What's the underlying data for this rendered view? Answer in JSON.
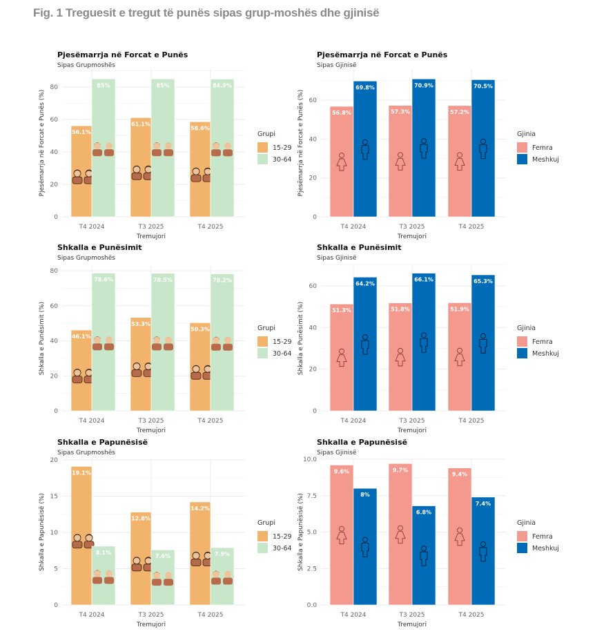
{
  "figure_title": "Fig. 1 Treguesit e tregut të punës sipas grup-moshës dhe gjinisë",
  "colors": {
    "group_15_29": "#F2B46D",
    "group_30_64": "#C8E6C9",
    "femra": "#F4998E",
    "meshkuj": "#006BB6",
    "grid": "#EBEBEB"
  },
  "chart_data": [
    {
      "id": "lfp-age",
      "type": "bar",
      "title": "Pjesëmarrja në Forcat e Punës",
      "subtitle": "Sipas Grupmoshës",
      "xlabel": "Tremujori",
      "ylabel": "Pjesëmarrja në Forcat e Punës (%)",
      "categories": [
        "T4 2024",
        "T3 2025",
        "T4 2025"
      ],
      "ylim": [
        0,
        85
      ],
      "yticks": [
        0,
        20,
        40,
        60,
        80
      ],
      "legend_title": "Grupi",
      "legend_position": "right",
      "icon_type": "people",
      "series": [
        {
          "name": "15-29",
          "color_key": "group_15_29",
          "values": [
            56.1,
            61.1,
            58.6
          ],
          "labels": [
            "56.1%",
            "61.1%",
            "58.6%"
          ]
        },
        {
          "name": "30-64",
          "color_key": "group_30_64",
          "values": [
            85,
            85,
            84.9
          ],
          "labels": [
            "85%",
            "85%",
            "84.9%"
          ]
        }
      ]
    },
    {
      "id": "lfp-gender",
      "type": "bar",
      "title": "Pjesëmarrja në Forcat e Punës",
      "subtitle": "Sipas Gjinisë",
      "xlabel": "Tremujori",
      "ylabel": "Pjesëmarrja në Forcat e Punës (%)",
      "categories": [
        "T4 2024",
        "T3 2025",
        "T4 2025"
      ],
      "ylim": [
        0,
        71
      ],
      "yticks": [
        0,
        20,
        40,
        60
      ],
      "legend_title": "Gjinia",
      "legend_position": "right",
      "icon_type": "gender",
      "series": [
        {
          "name": "Femra",
          "color_key": "femra",
          "values": [
            56.8,
            57.3,
            57.2
          ],
          "labels": [
            "56.8%",
            "57.3%",
            "57.2%"
          ]
        },
        {
          "name": "Meshkuj",
          "color_key": "meshkuj",
          "values": [
            69.8,
            70.9,
            70.5
          ],
          "labels": [
            "69.8%",
            "70.9%",
            "70.5%"
          ]
        }
      ]
    },
    {
      "id": "emp-age",
      "type": "bar",
      "title": "Shkalla e Punësimit",
      "subtitle": "Sipas Grupmoshës",
      "xlabel": "Tremujori",
      "ylabel": "Shkalla e Punësimit (%)",
      "categories": [
        "T4 2024",
        "T3 2025",
        "T4 2025"
      ],
      "ylim": [
        0,
        80
      ],
      "yticks": [
        0,
        20,
        40,
        60,
        80
      ],
      "legend_title": "Grupi",
      "legend_position": "right",
      "icon_type": "people",
      "series": [
        {
          "name": "15-29",
          "color_key": "group_15_29",
          "values": [
            46.1,
            53.3,
            50.3
          ],
          "labels": [
            "46.1%",
            "53.3%",
            "50.3%"
          ]
        },
        {
          "name": "30-64",
          "color_key": "group_30_64",
          "values": [
            78.6,
            78.5,
            78.2
          ],
          "labels": [
            "78.6%",
            "78.5%",
            "78.2%"
          ]
        }
      ]
    },
    {
      "id": "emp-gender",
      "type": "bar",
      "title": "Shkalla e Punësimit",
      "subtitle": "Sipas Gjinisë",
      "xlabel": "Tremujori",
      "ylabel": "Shkalla e Punësimit (%)",
      "categories": [
        "T4 2024",
        "T3 2025",
        "T4 2025"
      ],
      "ylim": [
        0,
        66.1
      ],
      "yticks": [
        0,
        20,
        40,
        60
      ],
      "legend_title": "Gjinia",
      "legend_position": "right",
      "icon_type": "gender",
      "series": [
        {
          "name": "Femra",
          "color_key": "femra",
          "values": [
            51.3,
            51.8,
            51.9
          ],
          "labels": [
            "51.3%",
            "51.8%",
            "51.9%"
          ]
        },
        {
          "name": "Meshkuj",
          "color_key": "meshkuj",
          "values": [
            64.2,
            66.1,
            65.3
          ],
          "labels": [
            "64.2%",
            "66.1%",
            "65.3%"
          ]
        }
      ]
    },
    {
      "id": "unemp-age",
      "type": "bar",
      "title": "Shkalla e Papunësisë",
      "subtitle": "Sipas Grupmoshës",
      "xlabel": "Tremujori",
      "ylabel": "Shkalla e Papunësisë (%)",
      "categories": [
        "T4 2024",
        "T3 2025",
        "T4 2025"
      ],
      "ylim": [
        0,
        20
      ],
      "yticks": [
        0,
        5,
        10,
        15,
        20
      ],
      "legend_title": "Grupi",
      "legend_position": "right",
      "icon_type": "people",
      "series": [
        {
          "name": "15-29",
          "color_key": "group_15_29",
          "values": [
            19.1,
            12.8,
            14.2
          ],
          "labels": [
            "19.1%",
            "12.8%",
            "14.2%"
          ]
        },
        {
          "name": "30-64",
          "color_key": "group_30_64",
          "values": [
            8.1,
            7.6,
            7.9
          ],
          "labels": [
            "8.1%",
            "7.6%",
            "7.9%"
          ]
        }
      ]
    },
    {
      "id": "unemp-gender",
      "type": "bar",
      "title": "Shkalla e Papunësisë",
      "subtitle": "Sipas Gjinisë",
      "xlabel": "Tremujori",
      "ylabel": "Shkalla e Papunësisë (%)",
      "categories": [
        "T4 2024",
        "T3 2025",
        "T4 2025"
      ],
      "ylim": [
        0,
        10
      ],
      "yticks": [
        0,
        2.5,
        5,
        7.5,
        10
      ],
      "ytick_labels": [
        "0.0",
        "2.5",
        "5.0",
        "7.5",
        "10.0"
      ],
      "legend_title": "Gjinia",
      "legend_position": "right",
      "icon_type": "gender",
      "series": [
        {
          "name": "Femra",
          "color_key": "femra",
          "values": [
            9.6,
            9.7,
            9.4
          ],
          "labels": [
            "9.6%",
            "9.7%",
            "9.4%"
          ]
        },
        {
          "name": "Meshkuj",
          "color_key": "meshkuj",
          "values": [
            8,
            6.8,
            7.4
          ],
          "labels": [
            "8%",
            "6.8%",
            "7.4%"
          ]
        }
      ]
    }
  ]
}
